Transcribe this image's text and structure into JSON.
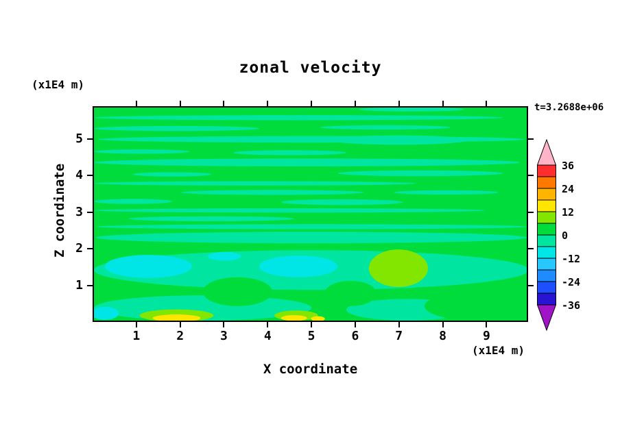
{
  "title": "zonal velocity",
  "time_label": "t=3.2688e+06",
  "x_axis": {
    "label": "X coordinate",
    "unit": "(x1E4 m)"
  },
  "y_axis": {
    "label": "Z coordinate",
    "unit": "(x1E4 m)"
  },
  "colorbar": {
    "labels": [
      "36",
      "24",
      "12",
      "0",
      "-12",
      "-24",
      "-36"
    ],
    "over_color": "#ffb4c8",
    "under_color": "#a014c8"
  },
  "chart_data": {
    "type": "filled_contour",
    "title": "zonal velocity",
    "xlabel": "X coordinate",
    "x_unit": "x1E4 m",
    "ylabel": "Z coordinate",
    "y_unit": "x1E4 m",
    "time_annotation": "t=3.2688e+06",
    "x_range": [
      0,
      9.95
    ],
    "z_range": [
      0,
      5.9
    ],
    "x_ticks": [
      1,
      2,
      3,
      4,
      5,
      6,
      7,
      8,
      9
    ],
    "z_ticks": [
      1,
      2,
      3,
      4,
      5
    ],
    "levels": [
      -36,
      -30,
      -24,
      -18,
      -12,
      -6,
      0,
      6,
      12,
      18,
      24,
      30,
      36
    ],
    "level_colors": [
      "#2814d2",
      "#1e50ff",
      "#1e8cff",
      "#28c8ff",
      "#00e6e6",
      "#00e6a0",
      "#00dc3c",
      "#82e600",
      "#ffe600",
      "#ffb400",
      "#ff7800",
      "#ff2d2d"
    ],
    "under_color": "#a014c8",
    "over_color": "#ffb4c8",
    "background_value": 3,
    "patch_format": "ellipses in data coordinates: x,z = center; rx,rz = radii; v = field value mapped through levels/level_colors",
    "patches": [
      {
        "x": 4.7,
        "z": 5.62,
        "rx": 4.7,
        "rz": 0.07,
        "v": -3
      },
      {
        "x": 7.3,
        "z": 5.85,
        "rx": 1.2,
        "rz": 0.06,
        "v": -3
      },
      {
        "x": 1.9,
        "z": 5.32,
        "rx": 1.9,
        "rz": 0.07,
        "v": -3
      },
      {
        "x": 6.7,
        "z": 5.35,
        "rx": 1.5,
        "rz": 0.06,
        "v": -3
      },
      {
        "x": 5.0,
        "z": 5.02,
        "rx": 4.9,
        "rz": 0.09,
        "v": -3
      },
      {
        "x": 7.0,
        "z": 5.0,
        "rx": 1.6,
        "rz": 0.13,
        "v": -3
      },
      {
        "x": 1.1,
        "z": 4.68,
        "rx": 1.1,
        "rz": 0.06,
        "v": -3
      },
      {
        "x": 4.5,
        "z": 4.65,
        "rx": 1.3,
        "rz": 0.07,
        "v": -3
      },
      {
        "x": 4.9,
        "z": 4.38,
        "rx": 4.9,
        "rz": 0.11,
        "v": -3
      },
      {
        "x": 1.8,
        "z": 4.05,
        "rx": 0.9,
        "rz": 0.06,
        "v": -3
      },
      {
        "x": 7.5,
        "z": 4.08,
        "rx": 1.9,
        "rz": 0.08,
        "v": -3
      },
      {
        "x": 3.7,
        "z": 3.8,
        "rx": 3.7,
        "rz": 0.06,
        "v": -3
      },
      {
        "x": 4.1,
        "z": 3.55,
        "rx": 2.1,
        "rz": 0.07,
        "v": -3
      },
      {
        "x": 8.1,
        "z": 3.55,
        "rx": 1.2,
        "rz": 0.06,
        "v": -3
      },
      {
        "x": 0.9,
        "z": 3.3,
        "rx": 0.9,
        "rz": 0.07,
        "v": -3
      },
      {
        "x": 5.7,
        "z": 3.28,
        "rx": 1.4,
        "rz": 0.08,
        "v": -3
      },
      {
        "x": 4.5,
        "z": 3.05,
        "rx": 4.5,
        "rz": 0.06,
        "v": -3
      },
      {
        "x": 2.7,
        "z": 2.82,
        "rx": 1.9,
        "rz": 0.07,
        "v": -3
      },
      {
        "x": 5.0,
        "z": 2.6,
        "rx": 4.95,
        "rz": 0.07,
        "v": -3
      },
      {
        "x": 5.0,
        "z": 2.3,
        "rx": 4.95,
        "rz": 0.16,
        "v": -3
      },
      {
        "x": 5.0,
        "z": 1.4,
        "rx": 5.0,
        "rz": 0.55,
        "v": -3
      },
      {
        "x": 2.5,
        "z": 0.35,
        "rx": 2.5,
        "rz": 0.35,
        "v": -3
      },
      {
        "x": 7.2,
        "z": 0.3,
        "rx": 1.4,
        "rz": 0.3,
        "v": -3
      },
      {
        "x": 3.3,
        "z": 0.8,
        "rx": 0.8,
        "rz": 0.4,
        "v": 3
      },
      {
        "x": 5.9,
        "z": 0.75,
        "rx": 0.6,
        "rz": 0.35,
        "v": 3
      },
      {
        "x": 8.8,
        "z": 0.4,
        "rx": 1.2,
        "rz": 0.4,
        "v": 3
      },
      {
        "x": 1.25,
        "z": 1.5,
        "rx": 1.0,
        "rz": 0.32,
        "v": -9
      },
      {
        "x": 4.7,
        "z": 1.5,
        "rx": 0.9,
        "rz": 0.3,
        "v": -9
      },
      {
        "x": 3.0,
        "z": 1.78,
        "rx": 0.38,
        "rz": 0.12,
        "v": -9
      },
      {
        "x": 0.25,
        "z": 0.2,
        "rx": 0.32,
        "rz": 0.18,
        "v": -9
      },
      {
        "x": 7.0,
        "z": 1.45,
        "rx": 0.68,
        "rz": 0.52,
        "v": 9
      },
      {
        "x": 1.9,
        "z": 0.14,
        "rx": 0.85,
        "rz": 0.17,
        "v": 9
      },
      {
        "x": 4.65,
        "z": 0.14,
        "rx": 0.5,
        "rz": 0.14,
        "v": 9
      },
      {
        "x": 1.9,
        "z": 0.07,
        "rx": 0.55,
        "rz": 0.1,
        "v": 15
      },
      {
        "x": 4.6,
        "z": 0.07,
        "rx": 0.3,
        "rz": 0.08,
        "v": 15
      },
      {
        "x": 5.15,
        "z": 0.05,
        "rx": 0.16,
        "rz": 0.07,
        "v": 15
      }
    ]
  }
}
